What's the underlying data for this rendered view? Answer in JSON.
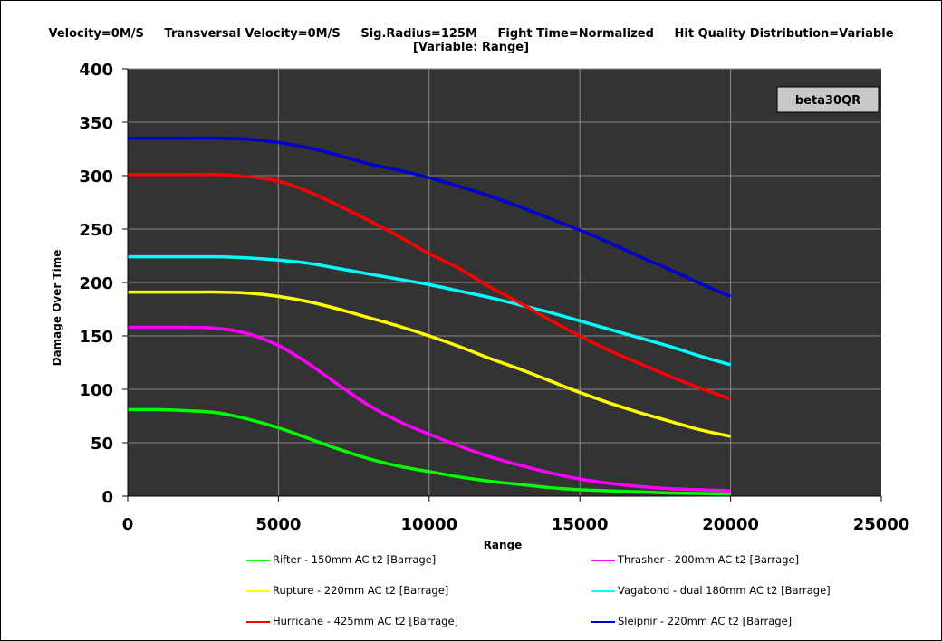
{
  "header": {
    "line1": "Velocity=0M/S     Transversal Velocity=0M/S     Sig.Radius=125M     Fight Time=Normalized     Hit Quality Distribution=Variable",
    "line2": "[Variable: Range]"
  },
  "colors": {
    "plot_bg": "#333333",
    "grid": "#8a8a8a",
    "label_box_bg": "#c8c8c8"
  },
  "chart_data": {
    "type": "line",
    "xlabel": "Range",
    "ylabel": "Damage Over Time",
    "xlim": [
      0,
      25000
    ],
    "ylim": [
      0,
      400
    ],
    "xticks": [
      0,
      5000,
      10000,
      15000,
      20000,
      25000
    ],
    "yticks": [
      0,
      50,
      100,
      150,
      200,
      250,
      300,
      350,
      400
    ],
    "grid": true,
    "annotation": "beta30QR",
    "legend_position": "bottom",
    "x": [
      0,
      1000,
      2000,
      3000,
      4000,
      5000,
      6000,
      7000,
      8000,
      9000,
      10000,
      11000,
      12000,
      13000,
      14000,
      15000,
      16000,
      17000,
      18000,
      19000,
      20000
    ],
    "series": [
      {
        "name": "Rifter - 150mm AC t2 [Barrage]",
        "color": "#00ff00",
        "values": [
          81,
          81,
          80,
          78,
          72,
          64,
          54,
          44,
          35,
          28,
          23,
          18,
          14,
          11,
          8,
          6,
          5,
          4,
          3,
          2.5,
          2
        ]
      },
      {
        "name": "Thrasher - 200mm AC t2 [Barrage]",
        "color": "#ff00ff",
        "values": [
          158,
          158,
          158,
          157,
          152,
          141,
          124,
          104,
          85,
          70,
          58,
          47,
          37,
          29,
          22,
          16,
          12,
          9,
          7,
          6,
          5
        ]
      },
      {
        "name": "Rupture - 220mm AC t2 [Barrage]",
        "color": "#ffff00",
        "values": [
          191,
          191,
          191,
          191,
          190,
          187,
          182,
          175,
          167,
          159,
          150,
          140,
          129,
          119,
          108,
          97,
          87,
          78,
          70,
          62,
          56
        ]
      },
      {
        "name": "Vagabond - dual 180mm AC t2 [Barrage]",
        "color": "#00ffff",
        "values": [
          224,
          224,
          224,
          224,
          223,
          221,
          218,
          213,
          208,
          203,
          198,
          192,
          186,
          179,
          172,
          164,
          156,
          148,
          140,
          131,
          123
        ]
      },
      {
        "name": "Hurricane - 425mm AC t2 [Barrage]",
        "color": "#ff0000",
        "values": [
          301,
          301,
          301,
          301,
          299,
          295,
          285,
          272,
          258,
          243,
          227,
          213,
          196,
          181,
          165,
          150,
          136,
          124,
          112,
          101,
          91
        ]
      },
      {
        "name": "Sleipnir - 220mm AC t2 [Barrage]",
        "color": "#0000cc",
        "values": [
          335,
          335,
          335,
          335,
          334,
          331,
          326,
          319,
          311,
          305,
          298,
          290,
          281,
          271,
          260,
          249,
          237,
          224,
          212,
          199,
          187
        ]
      }
    ]
  }
}
